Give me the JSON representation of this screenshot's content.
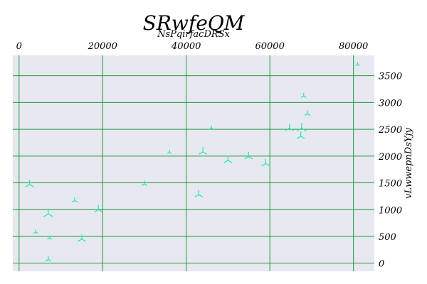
{
  "chart_data": {
    "type": "scatter",
    "title": "SRwfeQM",
    "subtitle": "NsPqirfacDRSx",
    "xlabel": "",
    "ylabel": "vLwwepnDsYjy",
    "xlim": [
      -1500,
      85000
    ],
    "ylim": [
      -150,
      3880
    ],
    "x_ticks": [
      "0",
      "20000",
      "40000",
      "60000",
      "80000"
    ],
    "y_ticks": [
      "0",
      "500",
      "1000",
      "1500",
      "2000",
      "2500",
      "3000",
      "3500"
    ],
    "x_axis_position": "top",
    "y_axis_position": "right",
    "grid": true,
    "marker": "tri",
    "colors": {
      "marker": "#2ee6b8",
      "grid": "#1f9a3a",
      "background": "#e8e8f0"
    },
    "points": [
      {
        "x": 2500,
        "y": 1470,
        "s": 6
      },
      {
        "x": 4000,
        "y": 580,
        "s": 3
      },
      {
        "x": 7000,
        "y": 920,
        "s": 7
      },
      {
        "x": 7300,
        "y": 470,
        "s": 3
      },
      {
        "x": 7000,
        "y": 70,
        "s": 4
      },
      {
        "x": 13300,
        "y": 1170,
        "s": 4
      },
      {
        "x": 15000,
        "y": 450,
        "s": 6
      },
      {
        "x": 19000,
        "y": 1000,
        "s": 6
      },
      {
        "x": 30000,
        "y": 1480,
        "s": 4
      },
      {
        "x": 36000,
        "y": 2070,
        "s": 3
      },
      {
        "x": 43000,
        "y": 1280,
        "s": 6
      },
      {
        "x": 44000,
        "y": 2080,
        "s": 6
      },
      {
        "x": 46000,
        "y": 2520,
        "s": 3
      },
      {
        "x": 50000,
        "y": 1920,
        "s": 6
      },
      {
        "x": 54900,
        "y": 1990,
        "s": 6
      },
      {
        "x": 59000,
        "y": 1860,
        "s": 6
      },
      {
        "x": 64700,
        "y": 2520,
        "s": 6
      },
      {
        "x": 67400,
        "y": 2370,
        "s": 6
      },
      {
        "x": 67600,
        "y": 2520,
        "s": 7
      },
      {
        "x": 68100,
        "y": 3120,
        "s": 4
      },
      {
        "x": 69000,
        "y": 2790,
        "s": 4
      },
      {
        "x": 81000,
        "y": 3710,
        "s": 3
      }
    ]
  }
}
